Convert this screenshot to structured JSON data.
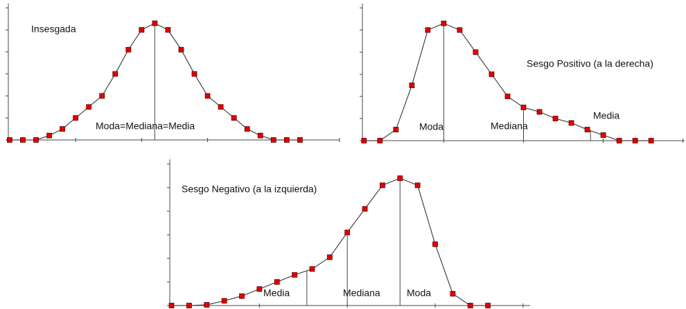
{
  "chart_data": [
    {
      "type": "line",
      "annotation": "Insesgada",
      "color": "#e00000",
      "x": [
        0,
        1,
        2,
        3,
        4,
        5,
        6,
        7,
        8,
        9,
        10,
        11,
        12,
        13,
        14,
        15,
        16,
        17,
        18,
        19,
        20,
        21,
        22
      ],
      "values": [
        0,
        0,
        0,
        0.2,
        0.5,
        1.0,
        1.5,
        2.0,
        3.0,
        4.1,
        5.0,
        5.3,
        5.0,
        4.1,
        3.0,
        2.0,
        1.5,
        1.0,
        0.5,
        0.2,
        0,
        0,
        0
      ],
      "markers": [
        {
          "label": "Moda=Mediana=Media",
          "x": 11
        }
      ],
      "xlim": [
        -0.1,
        25
      ],
      "xticks": [
        0,
        5,
        10,
        15,
        20,
        25
      ],
      "ylim": [
        0,
        6.2
      ],
      "yticks": [
        0,
        1,
        2,
        3,
        4,
        5,
        6
      ]
    },
    {
      "type": "line",
      "annotation": "Sesgo Positivo (a la derecha)",
      "color": "#e00000",
      "x": [
        0,
        1,
        2,
        3,
        4,
        5,
        6,
        7,
        8,
        9,
        10,
        11,
        12,
        13,
        14,
        15,
        16,
        17,
        18
      ],
      "values": [
        0,
        0,
        0.5,
        2.5,
        5.0,
        5.3,
        5.0,
        4.0,
        3.0,
        2.0,
        1.5,
        1.3,
        1.0,
        0.8,
        0.5,
        0.25,
        0,
        0,
        0
      ],
      "markers": [
        {
          "label": "Moda",
          "x": 5
        },
        {
          "label": "Mediana",
          "x": 10
        },
        {
          "label": "Media",
          "x": 14.2
        }
      ],
      "xlim": [
        -0.1,
        20.1
      ],
      "xticks": [
        0,
        5,
        10,
        15,
        20
      ],
      "ylim": [
        0,
        6.2
      ],
      "yticks": [
        0,
        1,
        2,
        3,
        4,
        5,
        6
      ]
    },
    {
      "type": "line",
      "annotation": "Sesgo Negativo (a la izquierda)",
      "color": "#e00000",
      "x": [
        0,
        1,
        2,
        3,
        4,
        5,
        6,
        7,
        8,
        9,
        10,
        11,
        12,
        13,
        14,
        15,
        16,
        17,
        18
      ],
      "values": [
        0,
        0,
        0.03,
        0.2,
        0.4,
        0.7,
        1.0,
        1.3,
        1.55,
        2.05,
        3.1,
        4.1,
        5.1,
        5.4,
        5.1,
        2.6,
        0.5,
        0,
        0
      ],
      "markers": [
        {
          "label": "Media",
          "x": 7.7
        },
        {
          "label": "Mediana",
          "x": 10
        },
        {
          "label": "Moda",
          "x": 13
        }
      ],
      "xlim": [
        -0.1,
        20.4
      ],
      "xticks": [
        0,
        5,
        10,
        15,
        20
      ],
      "ylim": [
        0,
        6.2
      ],
      "yticks": [
        0,
        1,
        2,
        3,
        4,
        5,
        6
      ]
    }
  ]
}
